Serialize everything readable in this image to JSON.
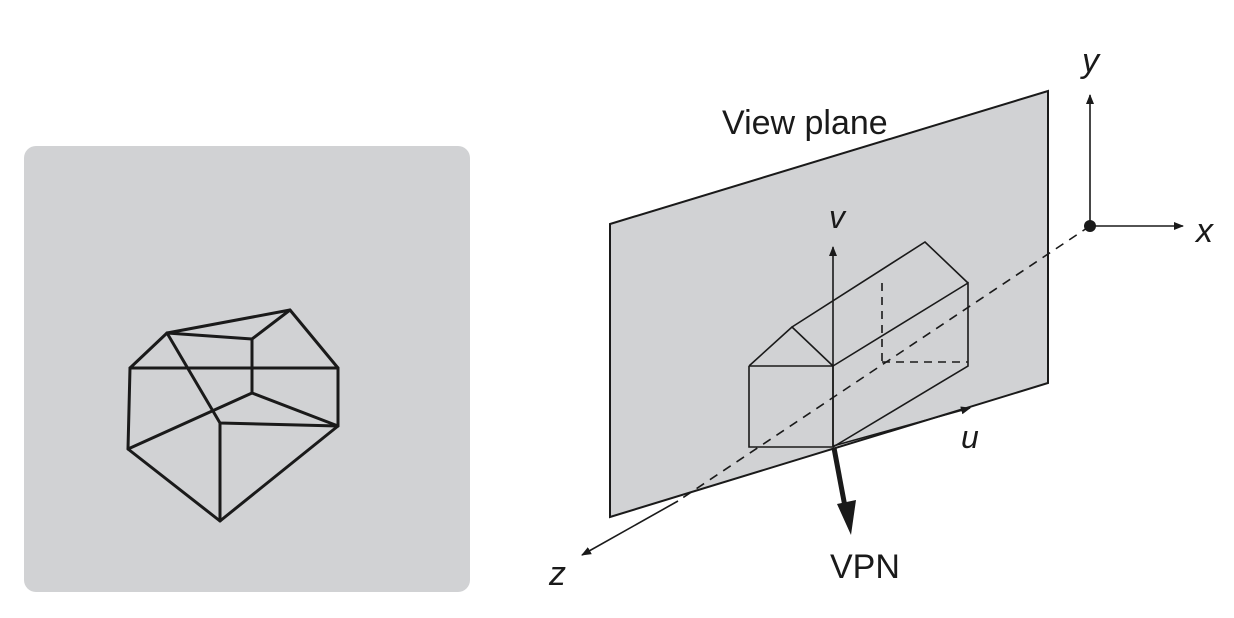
{
  "labels": {
    "view_plane": "View plane",
    "axis_y": "y",
    "axis_x": "x",
    "axis_z": "z",
    "axis_v": "v",
    "axis_u": "u",
    "vpn": "VPN"
  },
  "colors": {
    "panel_fill": "#d1d2d4",
    "plane_fill": "#d1d2d4",
    "stroke": "#1a1a1a"
  }
}
